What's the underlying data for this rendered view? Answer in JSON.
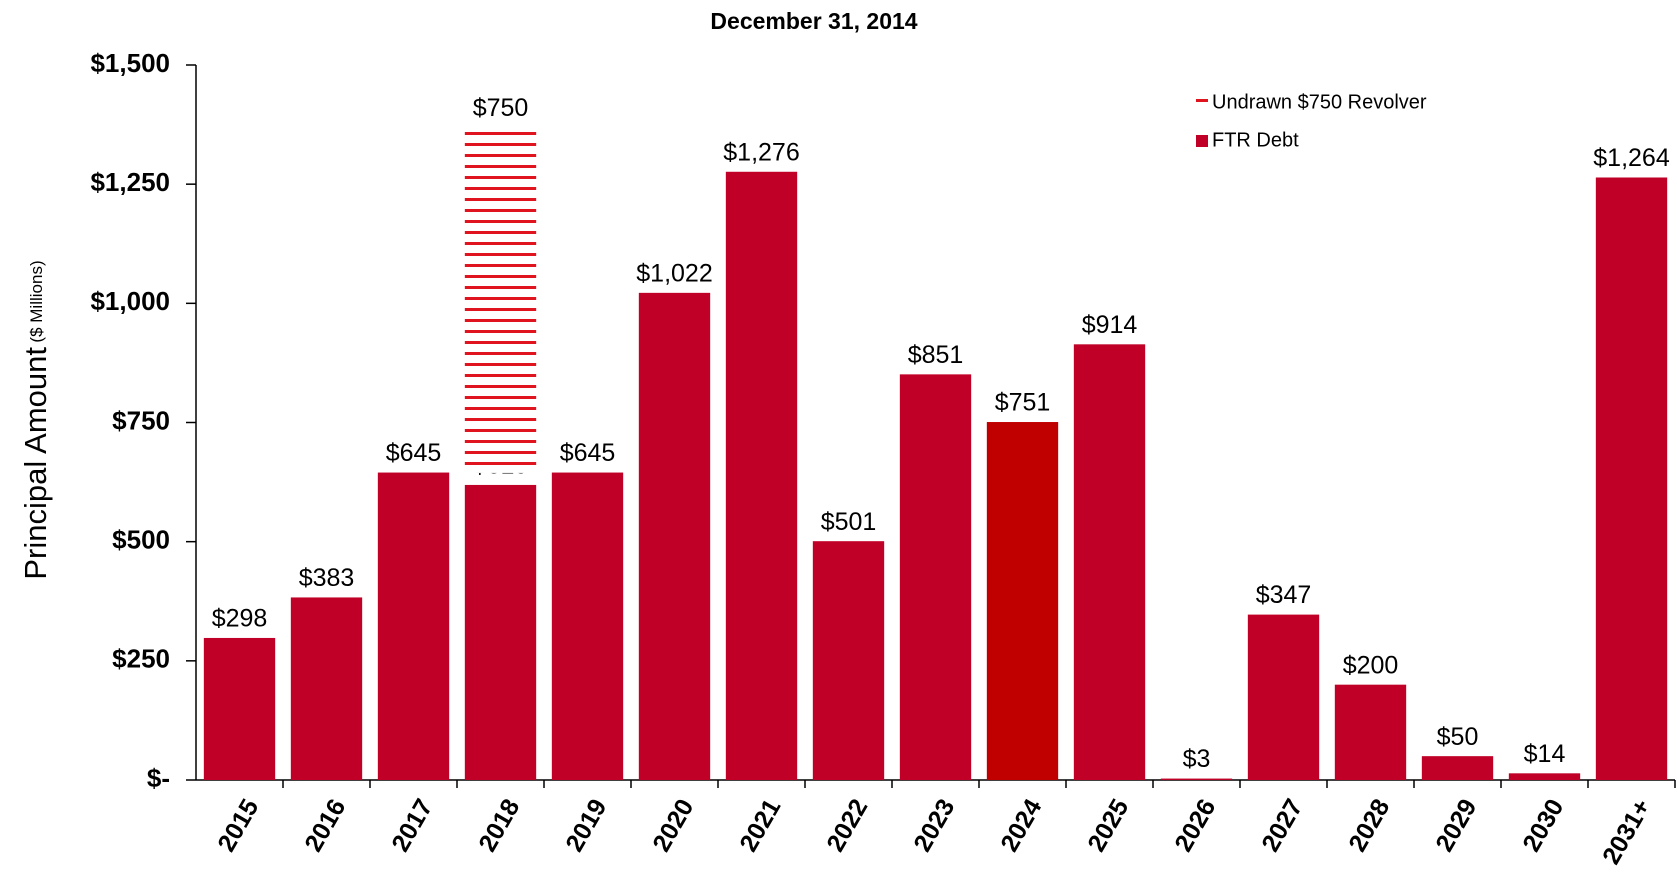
{
  "chart_data": {
    "type": "bar",
    "stacked": true,
    "title": "December 31, 2014",
    "y_label": "Principal Amount",
    "y_label_unit": "($ Millions)",
    "categories": [
      "2015",
      "2016",
      "2017",
      "2018",
      "2019",
      "2020",
      "2021",
      "2022",
      "2023",
      "2024",
      "2025",
      "2026",
      "2027",
      "2028",
      "2029",
      "2030",
      "2031+"
    ],
    "series": [
      {
        "name": "FTR Debt",
        "color": "#c00026",
        "colors": [
          "#c00026",
          "#c00026",
          "#c00026",
          "#c00026",
          "#c00026",
          "#c00026",
          "#c00026",
          "#c00026",
          "#c00026",
          "#c00000",
          "#c00026",
          "#c00026",
          "#c00026",
          "#c00026",
          "#c00026",
          "#c00026",
          "#c00026"
        ],
        "values": [
          298,
          383,
          645,
          619,
          645,
          1022,
          1276,
          501,
          851,
          751,
          914,
          3,
          347,
          200,
          50,
          14,
          1264
        ],
        "value_labels": [
          "$298",
          "$383",
          "$645",
          "$619",
          "$645",
          "$1,022",
          "$1,276",
          "$501",
          "$851",
          "$751",
          "$914",
          "$3",
          "$347",
          "$200",
          "$50",
          "$14",
          "$1,264"
        ]
      },
      {
        "name": "Undrawn $750 Revolver",
        "color": "#e0141e",
        "pattern": "horizontal-lines",
        "values": [
          null,
          null,
          null,
          750,
          null,
          null,
          null,
          null,
          null,
          null,
          null,
          null,
          null,
          null,
          null,
          null,
          null
        ],
        "value_labels": [
          null,
          null,
          null,
          "$750",
          null,
          null,
          null,
          null,
          null,
          null,
          null,
          null,
          null,
          null,
          null,
          null,
          null
        ]
      }
    ],
    "ylim": [
      0,
      1500
    ],
    "yticks": [
      {
        "value": 0,
        "label": "$-"
      },
      {
        "value": 250,
        "label": "$250"
      },
      {
        "value": 500,
        "label": "$500"
      },
      {
        "value": 750,
        "label": "$750"
      },
      {
        "value": 1000,
        "label": "$1,000"
      },
      {
        "value": 1250,
        "label": "$1,250"
      },
      {
        "value": 1500,
        "label": "$1,500"
      }
    ],
    "legend": "upper right",
    "grid": false
  }
}
